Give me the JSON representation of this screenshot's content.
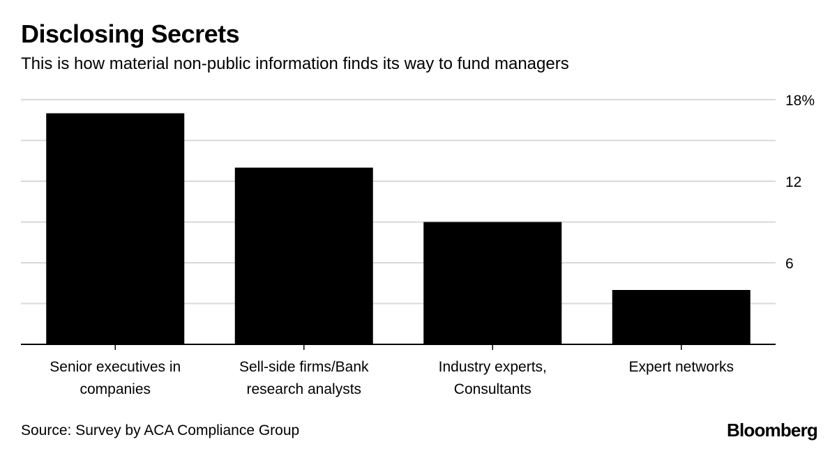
{
  "header": {
    "title": "Disclosing Secrets",
    "subtitle": "This is how material non-public information finds its way to fund managers"
  },
  "footer": {
    "source": "Source: Survey by ACA Compliance Group",
    "brand": "Bloomberg"
  },
  "colors": {
    "bar": "#000000",
    "grid": "#d9d9d9",
    "axis": "#000000"
  },
  "chart_data": {
    "type": "bar",
    "categories": [
      [
        "Senior executives in",
        "companies"
      ],
      [
        "Sell-side firms/Bank",
        "research analysts"
      ],
      [
        "Industry experts,",
        "Consultants"
      ],
      [
        "Expert networks"
      ]
    ],
    "values": [
      17,
      13,
      9,
      4
    ],
    "ylim": [
      0,
      18
    ],
    "yticks": [
      0,
      3,
      6,
      9,
      12,
      15,
      18
    ],
    "ytick_labels": [
      "",
      "",
      "6",
      "",
      "12",
      "",
      "18%"
    ],
    "grid": true,
    "y_axis_side": "right"
  }
}
